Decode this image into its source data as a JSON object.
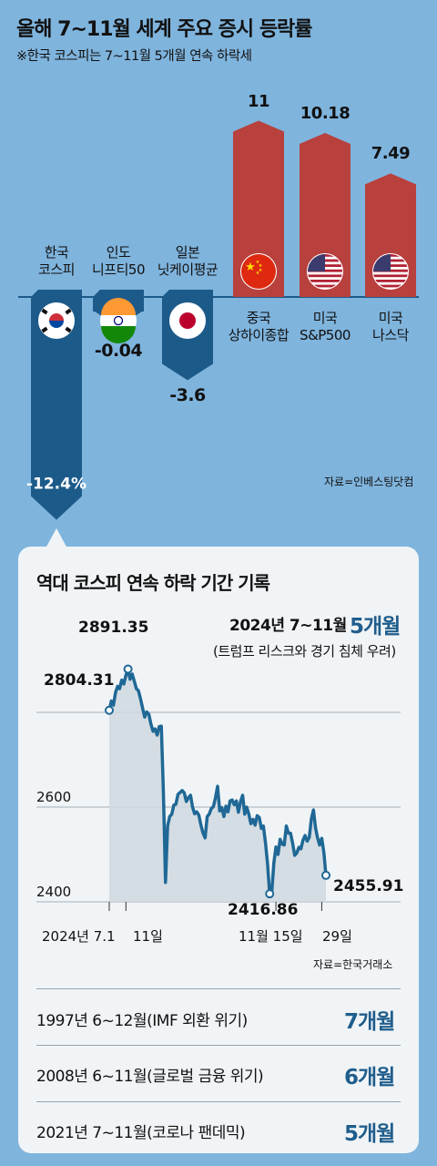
{
  "title": "올해 7~11월 세계 주요 증시 등락률",
  "note": "※한국 코스피는 7~11월 5개월 연속 하락세",
  "colors": {
    "up": "#b8403d",
    "down": "#1c5a8a",
    "line": "#1f6896",
    "area": "#cfd8df"
  },
  "market_chart": {
    "source": "자료=인베스팅닷컴",
    "chart_data": {
      "type": "bar",
      "categories": [
        "한국 코스피",
        "인도 니프티50",
        "일본 닛케이평균",
        "중국 상하이종합",
        "미국 S&P500",
        "미국 나스닥"
      ],
      "category_lines": [
        [
          "한국",
          "코스피"
        ],
        [
          "인도",
          "니프티50"
        ],
        [
          "일본",
          "닛케이평균"
        ],
        [
          "중국",
          "상하이종합"
        ],
        [
          "미국",
          "S&P500"
        ],
        [
          "미국",
          "나스닥"
        ]
      ],
      "values": [
        -12.4,
        -0.04,
        -3.6,
        11,
        10.18,
        7.49
      ],
      "value_labels": [
        "-12.4%",
        "-0.04",
        "-3.6",
        "11",
        "10.18",
        "7.49"
      ],
      "flags": [
        "korea-flag-icon",
        "india-flag-icon",
        "japan-flag-icon",
        "china-flag-icon",
        "usa-flag-icon",
        "usa-flag-icon"
      ],
      "unit": "%"
    }
  },
  "kospi": {
    "title": "역대 코스피 연속 하락 기간 기록",
    "highlight": {
      "period": "2024년 7~11월",
      "value": "5개월",
      "note": "(트럼프 리스크와 경기 침체 우려)"
    },
    "source": "자료=한국거래소",
    "chart_data": {
      "type": "line",
      "ylim": [
        2400,
        2900
      ],
      "yticks": [
        2400,
        2600
      ],
      "xlabels": [
        "2024년 7.1",
        "11일",
        "11월 15일",
        "29일"
      ],
      "annotations": [
        "2804.31",
        "2891.35",
        "2416.86",
        "2455.91"
      ],
      "x": [
        0,
        1,
        2,
        3,
        4,
        5,
        6,
        7,
        8,
        9,
        10,
        11,
        12,
        13,
        14,
        15,
        16,
        17,
        18,
        19,
        20,
        21,
        22,
        23,
        24,
        25,
        26,
        27,
        28,
        29,
        30,
        31,
        32,
        33,
        34,
        35,
        36,
        37,
        38,
        39,
        40,
        41,
        42,
        43,
        44,
        45,
        46,
        47,
        48,
        49,
        50,
        51,
        52,
        53,
        54,
        55,
        56,
        57,
        58,
        59,
        60,
        61,
        62,
        63,
        64,
        65,
        66,
        67,
        68,
        69,
        70,
        71,
        72,
        73,
        74,
        75,
        76,
        77,
        78,
        79,
        80,
        81,
        82,
        83,
        84,
        85,
        86,
        87,
        88,
        89,
        90,
        91,
        92,
        93,
        94,
        95,
        96,
        97,
        98,
        99,
        100,
        101,
        102,
        103,
        104
      ],
      "values": [
        2804.31,
        2824,
        2815,
        2842,
        2855,
        2850,
        2868,
        2860,
        2878,
        2891.35,
        2870,
        2881,
        2866,
        2850,
        2846,
        2829,
        2809,
        2790,
        2801,
        2796,
        2775,
        2760,
        2765,
        2752,
        2770,
        2771,
        2630,
        2441,
        2560,
        2580,
        2585,
        2604,
        2606,
        2627,
        2631,
        2635,
        2630,
        2612,
        2620,
        2625,
        2600,
        2586,
        2590,
        2583,
        2562,
        2545,
        2535,
        2580,
        2585,
        2597,
        2601,
        2620,
        2644,
        2592,
        2599,
        2580,
        2602,
        2590,
        2613,
        2615,
        2605,
        2613,
        2589,
        2612,
        2625,
        2585,
        2600,
        2585,
        2565,
        2574,
        2562,
        2582,
        2578,
        2555,
        2560,
        2525,
        2480,
        2417,
        2420,
        2482,
        2516,
        2500,
        2532,
        2522,
        2520,
        2560,
        2545,
        2545,
        2524,
        2498,
        2503,
        2515,
        2512,
        2530,
        2540,
        2528,
        2536,
        2575,
        2594,
        2556,
        2535,
        2520,
        2534,
        2505,
        2455.91
      ],
      "month_starts": [
        0,
        8,
        80,
        102
      ]
    },
    "records": [
      {
        "period": "1997년 6~12월(IMF 외환 위기)",
        "value": "7개월"
      },
      {
        "period": "2008년 6~11월(글로벌 금융 위기)",
        "value": "6개월"
      },
      {
        "period": "2021년 7~11월(코로나 팬데믹)",
        "value": "5개월"
      }
    ]
  }
}
